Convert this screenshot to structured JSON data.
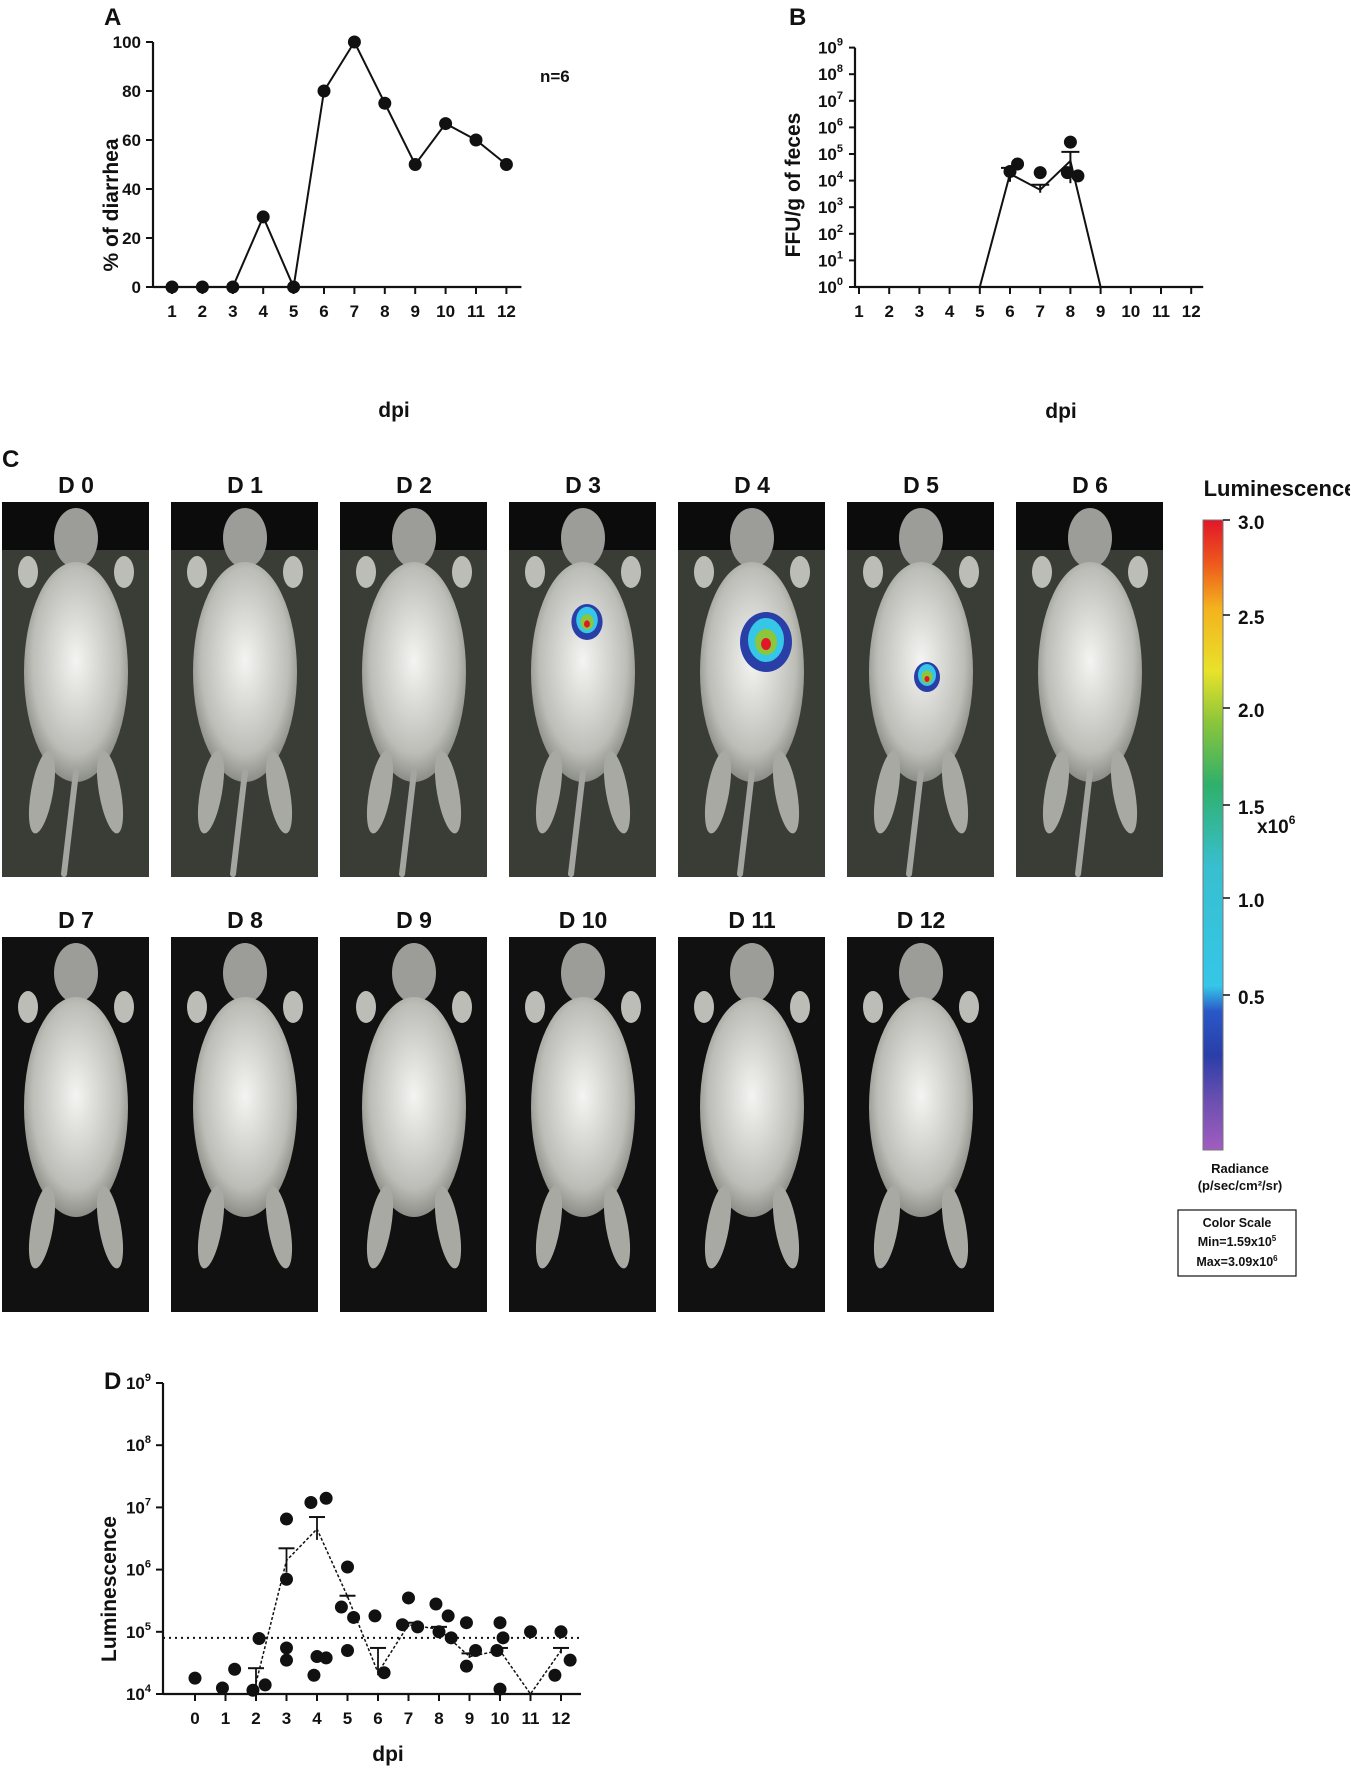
{
  "panels": {
    "a": "A",
    "b": "B",
    "c": "C",
    "d": "D"
  },
  "chart_data": [
    {
      "panel": "A",
      "type": "line",
      "title": "",
      "xlabel": "dpi",
      "ylabel": "% of diarrhea",
      "annotation": "n=6",
      "x": [
        1,
        2,
        3,
        4,
        5,
        6,
        7,
        8,
        9,
        10,
        11,
        12
      ],
      "y": [
        0,
        0,
        0,
        28.6,
        0,
        80,
        100,
        75,
        50,
        66.7,
        60,
        50
      ],
      "ylim": [
        0,
        100
      ],
      "yticks": [
        0,
        20,
        40,
        60,
        80,
        100
      ],
      "xticks": [
        "1",
        "2",
        "3",
        "4",
        "5",
        "6",
        "7",
        "8",
        "9",
        "10",
        "11",
        "12"
      ]
    },
    {
      "panel": "B",
      "type": "line",
      "title": "",
      "xlabel": "dpi",
      "ylabel": "FFU/g of feces",
      "yscale": "log",
      "ylim": [
        1,
        1000000000
      ],
      "yticks": [
        "10^0",
        "10^1",
        "10^2",
        "10^3",
        "10^4",
        "10^5",
        "10^6",
        "10^7",
        "10^8",
        "10^9"
      ],
      "xticks": [
        "1",
        "2",
        "3",
        "4",
        "5",
        "6",
        "7",
        "8",
        "9",
        "10",
        "11",
        "12"
      ],
      "mean_line": {
        "x": [
          1,
          2,
          3,
          4,
          5,
          6,
          7,
          8,
          9,
          10,
          11,
          12
        ],
        "y": [
          1,
          1,
          1,
          1,
          1,
          18000,
          4500,
          55000,
          1,
          1,
          1,
          1
        ]
      },
      "error_bars": [
        {
          "x": 6,
          "low": 9000,
          "high": 30000
        },
        {
          "x": 7,
          "low": 3500,
          "high": 7000
        },
        {
          "x": 8,
          "low": 8000,
          "high": 120000
        }
      ],
      "points": [
        {
          "x": 6,
          "y": 22000
        },
        {
          "x": 6.25,
          "y": 42000
        },
        {
          "x": 7,
          "y": 20000
        },
        {
          "x": 8,
          "y": 280000
        },
        {
          "x": 7.9,
          "y": 20000
        },
        {
          "x": 8.25,
          "y": 15000
        }
      ]
    },
    {
      "panel": "D",
      "type": "scatter",
      "title": "",
      "xlabel": "dpi",
      "ylabel": "Luminescence",
      "yscale": "log",
      "ylim": [
        10000,
        1000000000
      ],
      "yticks": [
        "10^4",
        "10^5",
        "10^6",
        "10^7",
        "10^8",
        "10^9"
      ],
      "xticks": [
        "0",
        "1",
        "2",
        "3",
        "4",
        "5",
        "6",
        "7",
        "8",
        "9",
        "10",
        "11",
        "12"
      ],
      "threshold": 80000,
      "mean_line": {
        "x": [
          2,
          3,
          4,
          5,
          6,
          7,
          8,
          9,
          10,
          11,
          12
        ],
        "y": [
          15000,
          1400000,
          4500000,
          370000,
          22000,
          130000,
          110000,
          40000,
          50000,
          10000,
          50000
        ]
      },
      "error_bars": [
        {
          "x": 2,
          "low": 11000,
          "high": 26000
        },
        {
          "x": 3,
          "low": 900000,
          "high": 2200000
        },
        {
          "x": 4,
          "low": 3000000,
          "high": 7000000
        },
        {
          "x": 5,
          "low": 350000,
          "high": 380000
        },
        {
          "x": 6,
          "low": 20000,
          "high": 55000
        },
        {
          "x": 7,
          "low": 120000,
          "high": 140000
        },
        {
          "x": 8,
          "low": 100000,
          "high": 120000
        },
        {
          "x": 9,
          "low": 38000,
          "high": 45000
        },
        {
          "x": 10,
          "low": 45000,
          "high": 55000
        },
        {
          "x": 12,
          "low": 45000,
          "high": 55000
        }
      ],
      "points": [
        {
          "x": 0,
          "y": 18000
        },
        {
          "x": 0.9,
          "y": 12500
        },
        {
          "x": 1.3,
          "y": 25000
        },
        {
          "x": 1.9,
          "y": 11500
        },
        {
          "x": 2.3,
          "y": 14000
        },
        {
          "x": 2.1,
          "y": 78000
        },
        {
          "x": 3,
          "y": 6500000
        },
        {
          "x": 3,
          "y": 700000
        },
        {
          "x": 3,
          "y": 55000
        },
        {
          "x": 3,
          "y": 35000
        },
        {
          "x": 3.8,
          "y": 12000000
        },
        {
          "x": 4.3,
          "y": 14000000
        },
        {
          "x": 4,
          "y": 40000
        },
        {
          "x": 4.3,
          "y": 38000
        },
        {
          "x": 3.9,
          "y": 20000
        },
        {
          "x": 5,
          "y": 1100000
        },
        {
          "x": 4.8,
          "y": 250000
        },
        {
          "x": 5.2,
          "y": 170000
        },
        {
          "x": 5,
          "y": 50000
        },
        {
          "x": 5.9,
          "y": 180000
        },
        {
          "x": 6.2,
          "y": 22000
        },
        {
          "x": 7,
          "y": 350000
        },
        {
          "x": 6.8,
          "y": 130000
        },
        {
          "x": 7.3,
          "y": 120000
        },
        {
          "x": 7.9,
          "y": 280000
        },
        {
          "x": 8.3,
          "y": 180000
        },
        {
          "x": 8,
          "y": 100000
        },
        {
          "x": 8.4,
          "y": 80000
        },
        {
          "x": 8.9,
          "y": 140000
        },
        {
          "x": 9.2,
          "y": 50000
        },
        {
          "x": 8.9,
          "y": 28000
        },
        {
          "x": 10,
          "y": 140000
        },
        {
          "x": 10.1,
          "y": 80000
        },
        {
          "x": 9.9,
          "y": 50000
        },
        {
          "x": 10,
          "y": 12000
        },
        {
          "x": 11,
          "y": 100000
        },
        {
          "x": 12,
          "y": 100000
        },
        {
          "x": 12.3,
          "y": 35000
        },
        {
          "x": 11.8,
          "y": 20000
        }
      ]
    }
  ],
  "mice": {
    "labels": [
      "D 0",
      "D 1",
      "D 2",
      "D 3",
      "D 4",
      "D 5",
      "D 6",
      "D 7",
      "D 8",
      "D 9",
      "D 10",
      "D 11",
      "D 12"
    ],
    "signal_level": [
      0,
      0,
      0,
      0.6,
      1,
      0.5,
      0,
      0,
      0,
      0,
      0,
      0,
      0
    ]
  },
  "legend": {
    "title": "Luminescence",
    "ticks": [
      "3.0",
      "2.5",
      "2.0",
      "1.5",
      "1.0",
      "0.5"
    ],
    "multiplier": "x10",
    "multiplier_exp": "6",
    "units_line1": "Radiance",
    "units_line2": "(p/sec/cm²/sr)",
    "box_title": "Color Scale",
    "box_min": "Min=1.59x10",
    "box_min_exp": "5",
    "box_max": "Max=3.09x10",
    "box_max_exp": "6"
  }
}
